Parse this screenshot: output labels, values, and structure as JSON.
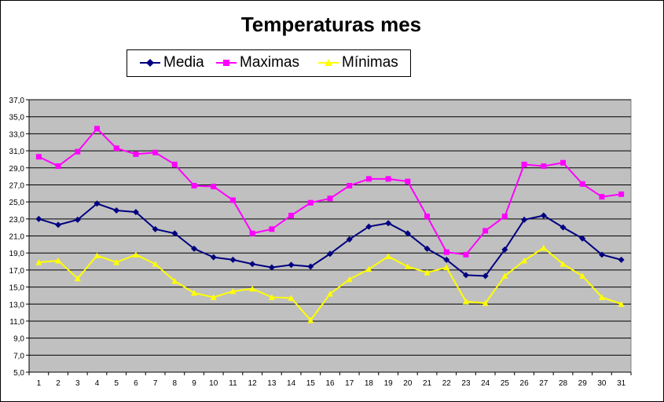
{
  "chart_data": {
    "type": "line",
    "title": "Temperaturas mes",
    "xlabel": "",
    "ylabel": "",
    "x": [
      1,
      2,
      3,
      4,
      5,
      6,
      7,
      8,
      9,
      10,
      11,
      12,
      13,
      14,
      15,
      16,
      17,
      18,
      19,
      20,
      21,
      22,
      23,
      24,
      25,
      26,
      27,
      28,
      29,
      30,
      31
    ],
    "ylim": [
      5.0,
      37.0
    ],
    "yticks": [
      "5,0",
      "7,0",
      "9,0",
      "11,0",
      "13,0",
      "15,0",
      "17,0",
      "19,0",
      "21,0",
      "23,0",
      "25,0",
      "27,0",
      "29,0",
      "31,0",
      "33,0",
      "35,0",
      "37,0"
    ],
    "grid": true,
    "legend_position": "top",
    "plot_background": "#C0C0C0",
    "series": [
      {
        "name": "Media",
        "color": "#000080",
        "marker": "diamond",
        "values": [
          23.0,
          22.3,
          22.9,
          24.8,
          24.0,
          23.8,
          21.8,
          21.3,
          19.5,
          18.5,
          18.2,
          17.7,
          17.3,
          17.6,
          17.4,
          18.9,
          20.6,
          22.1,
          22.5,
          21.3,
          19.5,
          18.2,
          16.4,
          16.3,
          19.4,
          22.9,
          23.4,
          22.0,
          20.7,
          18.8,
          18.2
        ]
      },
      {
        "name": "Maximas",
        "color": "#FF00FF",
        "marker": "square",
        "values": [
          30.3,
          29.2,
          30.9,
          33.6,
          31.3,
          30.6,
          30.8,
          29.4,
          26.9,
          26.8,
          25.2,
          21.3,
          21.8,
          23.4,
          24.9,
          25.4,
          26.9,
          27.7,
          27.7,
          27.4,
          23.3,
          19.1,
          18.8,
          21.6,
          23.3,
          29.4,
          29.2,
          29.6,
          27.1,
          25.6,
          25.9
        ]
      },
      {
        "name": "Mínimas",
        "color": "#FFFF00",
        "marker": "triangle",
        "values": [
          17.9,
          18.1,
          16.0,
          18.7,
          17.9,
          18.8,
          17.7,
          15.7,
          14.3,
          13.8,
          14.5,
          14.8,
          13.8,
          13.7,
          11.1,
          14.2,
          15.9,
          17.1,
          18.6,
          17.4,
          16.7,
          17.3,
          13.3,
          13.1,
          16.3,
          18.1,
          19.6,
          17.7,
          16.3,
          13.8,
          13.0
        ]
      }
    ]
  }
}
